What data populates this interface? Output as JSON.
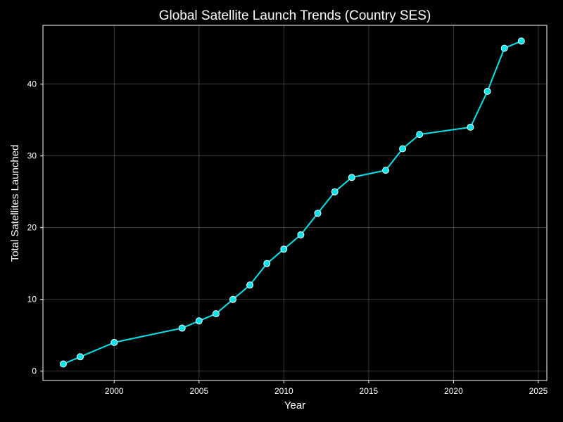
{
  "chart_data": {
    "type": "line",
    "title": "Global Satellite Launch Trends (Country SES)",
    "xlabel": "Year",
    "ylabel": "Total Satellites Launched",
    "xlim": [
      1995.8,
      2025.5
    ],
    "ylim": [
      -1.3,
      48.2
    ],
    "xticks": [
      2000,
      2005,
      2010,
      2015,
      2020,
      2025
    ],
    "yticks": [
      0,
      10,
      20,
      30,
      40
    ],
    "grid": true,
    "colors": {
      "background": "#000000",
      "line": "#00e5ee",
      "marker_fill": "#00e5ee",
      "marker_edge": "#ffffff"
    },
    "series": [
      {
        "x": [
          1997,
          1998,
          2000,
          2004,
          2005,
          2006,
          2007,
          2008,
          2009,
          2010,
          2011,
          2012,
          2013,
          2014,
          2016,
          2017,
          2018,
          2021,
          2022,
          2023,
          2024
        ],
        "values": [
          1,
          2,
          4,
          6,
          7,
          8,
          10,
          12,
          15,
          17,
          19,
          22,
          25,
          27,
          28,
          31,
          33,
          34,
          39,
          45,
          46
        ]
      }
    ]
  }
}
